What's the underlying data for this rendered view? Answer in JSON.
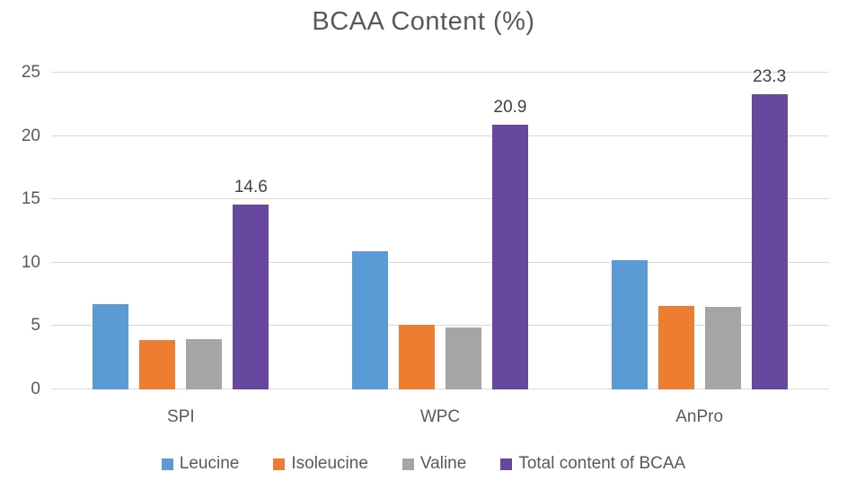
{
  "chart_data": {
    "type": "bar",
    "title": "BCAA Content (%)",
    "categories": [
      "SPI",
      "WPC",
      "AnPro"
    ],
    "series": [
      {
        "name": "Leucine",
        "color": "#5B9BD5",
        "values": [
          6.7,
          10.9,
          10.2
        ]
      },
      {
        "name": "Isoleucine",
        "color": "#ED7D31",
        "values": [
          3.9,
          5.1,
          6.6
        ]
      },
      {
        "name": "Valine",
        "color": "#A5A5A5",
        "values": [
          4.0,
          4.9,
          6.5
        ]
      },
      {
        "name": "Total content of BCAA",
        "color": "#68489F",
        "values": [
          14.6,
          20.9,
          23.3
        ],
        "data_labels": [
          "14.6",
          "20.9",
          "23.3"
        ]
      }
    ],
    "xlabel": "",
    "ylabel": "",
    "ylim": [
      0,
      25
    ],
    "yticks": [
      0,
      5,
      10,
      15,
      20,
      25
    ],
    "grid": true,
    "legend_position": "bottom",
    "colors": {
      "gridline": "#d9d9d9",
      "axis_text": "#595959",
      "title_text": "#595959",
      "data_label_text": "#404040"
    }
  }
}
